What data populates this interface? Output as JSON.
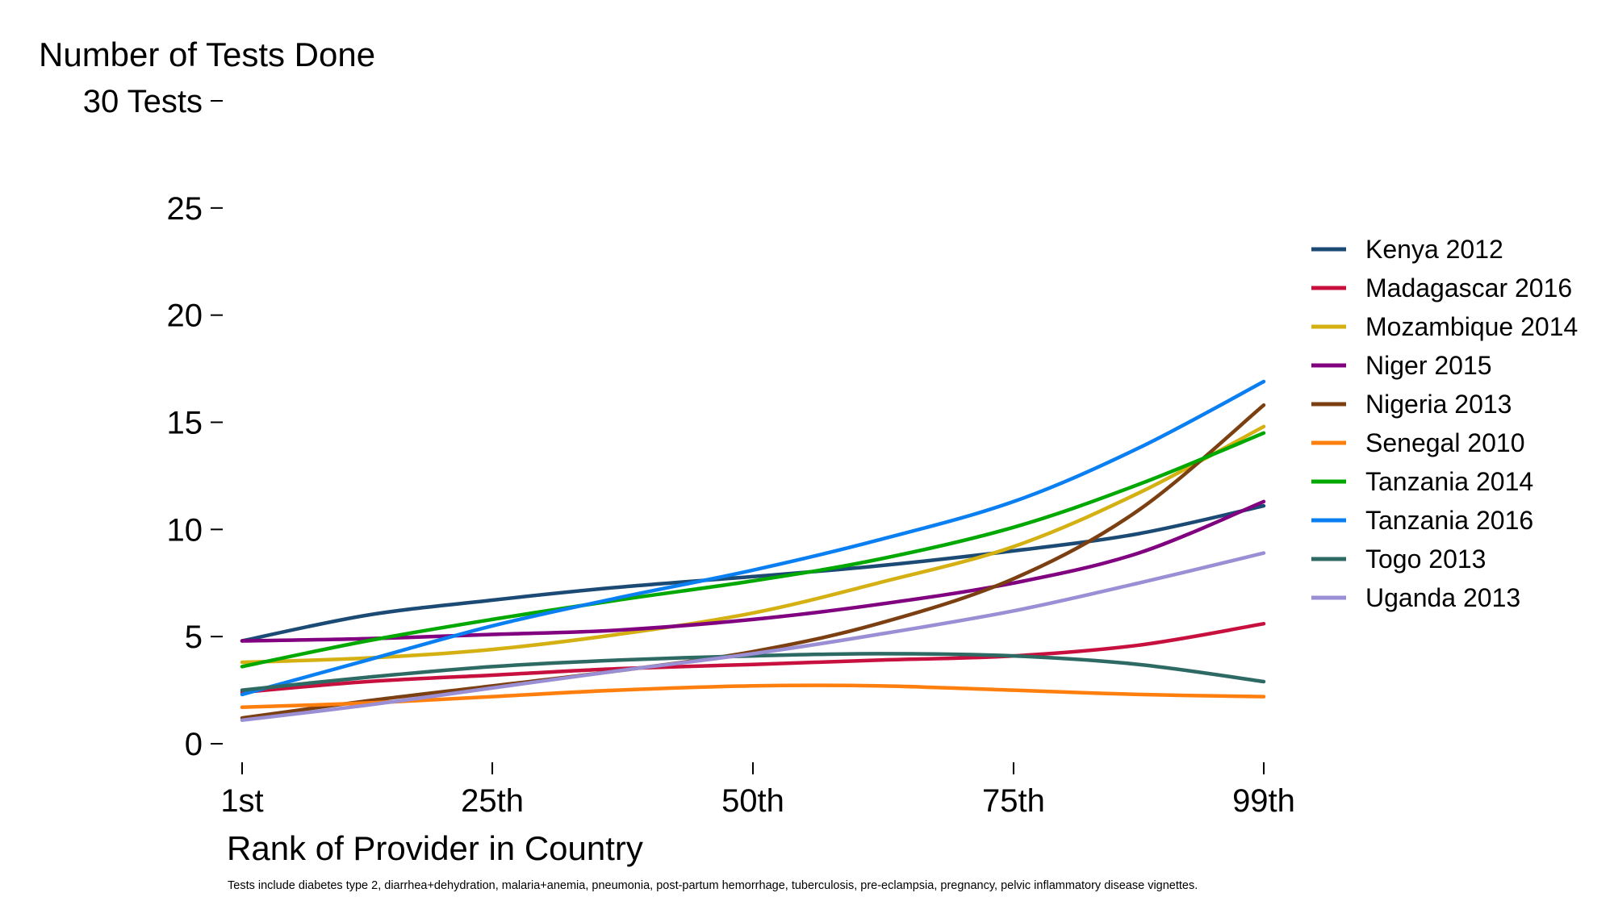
{
  "chart_data": {
    "type": "line",
    "title": "Number of Tests Done",
    "xlabel": "Rank of Provider in Country",
    "ylabel": "",
    "note": "Tests include diabetes type 2, diarrhea+dehydration, malaria+anemia, pneumonia, post-partum hemorrhage, tuberculosis, pre-eclampsia, pregnancy, pelvic inflammatory disease vignettes.",
    "xlim": [
      1,
      99
    ],
    "ylim": [
      0,
      30
    ],
    "x_ticks": [
      {
        "value": 1,
        "label": "1st"
      },
      {
        "value": 25,
        "label": "25th"
      },
      {
        "value": 50,
        "label": "50th"
      },
      {
        "value": 75,
        "label": "75th"
      },
      {
        "value": 99,
        "label": "99th"
      }
    ],
    "y_ticks": [
      {
        "value": 0,
        "label": "0"
      },
      {
        "value": 5,
        "label": "5"
      },
      {
        "value": 10,
        "label": "10"
      },
      {
        "value": 15,
        "label": "15"
      },
      {
        "value": 20,
        "label": "20"
      },
      {
        "value": 25,
        "label": "25"
      },
      {
        "value": 30,
        "label": "30 Tests"
      }
    ],
    "grid": false,
    "legend_position": "right",
    "x": [
      1,
      13,
      25,
      37,
      50,
      62,
      75,
      87,
      99
    ],
    "series": [
      {
        "name": "Kenya 2012",
        "color": "#1b4a74",
        "values": [
          4.8,
          6.0,
          6.7,
          7.3,
          7.8,
          8.3,
          9.0,
          9.8,
          11.1
        ]
      },
      {
        "name": "Madagascar 2016",
        "color": "#c8103e",
        "values": [
          2.4,
          2.9,
          3.2,
          3.5,
          3.7,
          3.9,
          4.1,
          4.6,
          5.6
        ]
      },
      {
        "name": "Mozambique 2014",
        "color": "#d4b012",
        "values": [
          3.8,
          4.0,
          4.4,
          5.1,
          6.1,
          7.5,
          9.2,
          11.7,
          14.8
        ]
      },
      {
        "name": "Niger 2015",
        "color": "#800080",
        "values": [
          4.8,
          4.9,
          5.1,
          5.3,
          5.8,
          6.5,
          7.5,
          8.9,
          11.3
        ]
      },
      {
        "name": "Nigeria 2013",
        "color": "#7b3f12",
        "values": [
          1.2,
          2.0,
          2.7,
          3.4,
          4.3,
          5.6,
          7.7,
          10.9,
          15.8
        ]
      },
      {
        "name": "Senegal 2010",
        "color": "#ff7f0e",
        "values": [
          1.7,
          1.9,
          2.2,
          2.5,
          2.7,
          2.7,
          2.5,
          2.3,
          2.2
        ]
      },
      {
        "name": "Tanzania 2014",
        "color": "#00a800",
        "values": [
          3.6,
          4.8,
          5.8,
          6.7,
          7.6,
          8.6,
          10.1,
          12.1,
          14.5
        ]
      },
      {
        "name": "Tanzania 2016",
        "color": "#0a7ff2",
        "values": [
          2.3,
          3.9,
          5.5,
          6.8,
          8.1,
          9.5,
          11.3,
          13.8,
          16.9
        ]
      },
      {
        "name": "Togo 2013",
        "color": "#2e6a64",
        "values": [
          2.5,
          3.1,
          3.6,
          3.9,
          4.1,
          4.2,
          4.1,
          3.7,
          2.9
        ]
      },
      {
        "name": "Uganda 2013",
        "color": "#9a8fd4",
        "values": [
          1.1,
          1.8,
          2.6,
          3.4,
          4.2,
          5.1,
          6.2,
          7.5,
          8.9
        ]
      }
    ]
  }
}
